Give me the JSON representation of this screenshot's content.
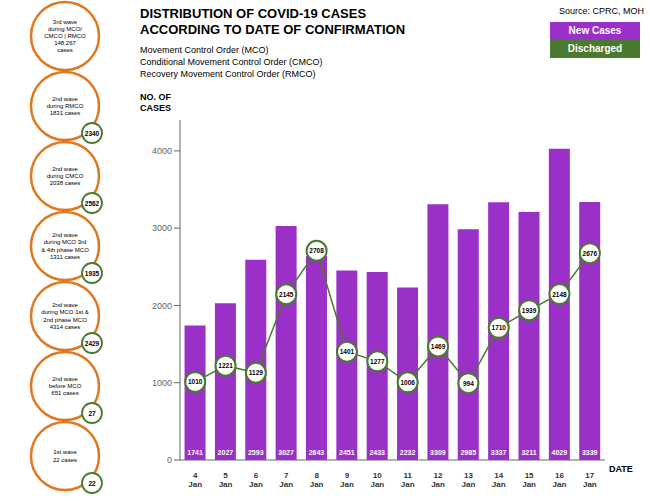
{
  "chart_data": {
    "type": "bar",
    "title": "DISTRIBUTION OF COVID-19 CASES\nACCORDING TO DATE OF CONFIRMATION",
    "subtitle": [
      "Movement Control Order (MCO)",
      "Conditional Movement Control Order (CMCO)",
      "Recovery Movement Control Order (RMCO)"
    ],
    "source": "Source: CPRC, MOH",
    "x_label": "DATE",
    "y_label": "NO. OF\nCASES",
    "categories": [
      "4\nJan",
      "5\nJan",
      "6\nJan",
      "7\nJan",
      "8\nJan",
      "9\nJan",
      "10\nJan",
      "11\nJan",
      "12\nJan",
      "13\nJan",
      "14\nJan",
      "15\nJan",
      "16\nJan",
      "17\nJan"
    ],
    "series": [
      {
        "name": "New Cases",
        "type": "bar",
        "color": "#9B30C8",
        "values": [
          1741,
          2027,
          2593,
          3027,
          2643,
          2451,
          2433,
          2232,
          3309,
          2985,
          3337,
          3211,
          4029,
          3339
        ]
      },
      {
        "name": "Discharged",
        "type": "line",
        "marker": "circle",
        "color": "#4A7A30",
        "values": [
          1010,
          1221,
          1129,
          2145,
          2708,
          1401,
          1277,
          1006,
          1469,
          994,
          1710,
          1939,
          2148,
          2676
        ]
      }
    ],
    "ylim": [
      0,
      4400
    ],
    "yticks": [
      0,
      1000,
      2000,
      3000,
      4000
    ],
    "grid": false,
    "legend": "top right",
    "data_labels": true,
    "annotations": [
      {
        "text": "3rd wave\nduring MCO/\nCMCO | RMCO\n148,267\ncases"
      },
      {
        "text": "2nd wave\nduring RMCO\n1831 cases",
        "value": 2340
      },
      {
        "text": "2nd wave\nduring CMCO\n2038 cases",
        "value": 2562
      },
      {
        "text": "2nd wave\nduring MCO 3rd\n& 4th phase MCO\n1311 cases",
        "value": 1935
      },
      {
        "text": "2nd wave\nduring MCO 1st &\n2nd phase MCO\n4314 cases",
        "value": 2429
      },
      {
        "text": "2nd wave\nbefore MCO\n651 cases",
        "value": 27
      },
      {
        "text": "1st wave\n22 cases",
        "value": 22
      }
    ]
  }
}
